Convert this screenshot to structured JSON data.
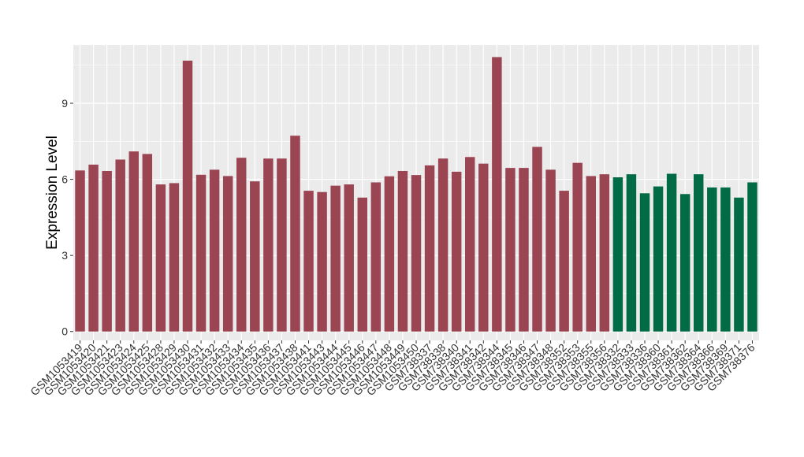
{
  "chart_data": {
    "type": "bar",
    "ylabel": "Expression Level",
    "xlabel": "",
    "ylim": [
      -0.35,
      11.3
    ],
    "yticks": [
      0,
      3,
      6,
      9
    ],
    "grid": true,
    "background": "#EBEBEB",
    "colors": {
      "group1": "#9B4452",
      "group2": "#006B45"
    },
    "categories": [
      "GSM1053419",
      "GSM1053420",
      "GSM1053421",
      "GSM1053423",
      "GSM1053424",
      "GSM1053425",
      "GSM1053428",
      "GSM1053429",
      "GSM1053430",
      "GSM1053431",
      "GSM1053432",
      "GSM1053433",
      "GSM1053434",
      "GSM1053435",
      "GSM1053436",
      "GSM1053437",
      "GSM1053438",
      "GSM1053441",
      "GSM1053443",
      "GSM1053444",
      "GSM1053445",
      "GSM1053446",
      "GSM1053447",
      "GSM1053448",
      "GSM1053449",
      "GSM1053450",
      "GSM738337",
      "GSM738338",
      "GSM738340",
      "GSM738341",
      "GSM738342",
      "GSM738344",
      "GSM738345",
      "GSM738346",
      "GSM738347",
      "GSM738348",
      "GSM738352",
      "GSM738353",
      "GSM738355",
      "GSM738356",
      "GSM738332",
      "GSM738333",
      "GSM738336",
      "GSM738360",
      "GSM738361",
      "GSM738362",
      "GSM738364",
      "GSM738366",
      "GSM738369",
      "GSM738371",
      "GSM738376"
    ],
    "values": [
      6.35,
      6.58,
      6.33,
      6.78,
      7.1,
      7.0,
      5.8,
      5.85,
      10.68,
      6.18,
      6.38,
      6.13,
      6.85,
      5.92,
      6.82,
      6.82,
      7.72,
      5.55,
      5.5,
      5.75,
      5.8,
      5.28,
      5.88,
      6.12,
      6.33,
      6.17,
      6.55,
      6.82,
      6.3,
      6.88,
      6.62,
      10.82,
      6.45,
      6.45,
      7.28,
      6.38,
      5.55,
      6.65,
      6.13,
      6.2,
      6.08,
      6.2,
      5.45,
      5.72,
      6.22,
      5.42,
      6.2,
      5.68,
      5.68,
      5.28,
      5.88
    ],
    "groups": [
      1,
      1,
      1,
      1,
      1,
      1,
      1,
      1,
      1,
      1,
      1,
      1,
      1,
      1,
      1,
      1,
      1,
      1,
      1,
      1,
      1,
      1,
      1,
      1,
      1,
      1,
      1,
      1,
      1,
      1,
      1,
      1,
      1,
      1,
      1,
      1,
      1,
      1,
      1,
      1,
      2,
      2,
      2,
      2,
      2,
      2,
      2,
      2,
      2,
      2,
      2
    ]
  }
}
